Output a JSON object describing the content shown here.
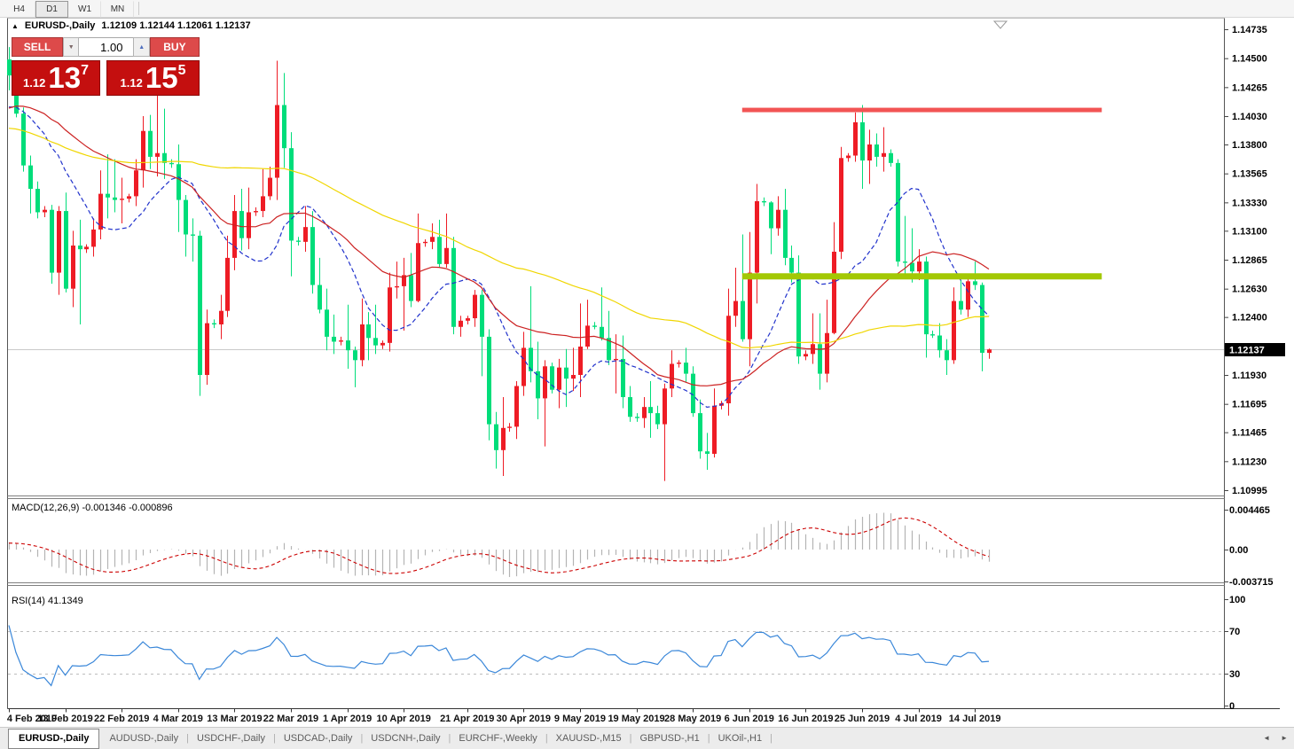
{
  "toolbar": {
    "timeframes": [
      {
        "label": "H4",
        "active": false
      },
      {
        "label": "D1",
        "active": true
      },
      {
        "label": "W1",
        "active": false
      },
      {
        "label": "MN",
        "active": false
      }
    ]
  },
  "chart": {
    "symbol_title": "EURUSD-,Daily",
    "ohlc_text": "1.12109 1.12144 1.12061 1.12137",
    "collapse_icon": "▲",
    "trade_panel": {
      "sell_label": "SELL",
      "buy_label": "BUY",
      "volume": "1.00",
      "spin_down_icon": "▼",
      "spin_up_icon": "▲",
      "sell_price_small": "1.12",
      "sell_price_big": "13",
      "sell_price_sup": "7",
      "buy_price_small": "1.12",
      "buy_price_big": "15",
      "buy_price_sup": "5",
      "panel_red": "#c40f0f",
      "button_red": "#dd4a4a"
    },
    "current_price_label": "1.12137",
    "price_axis_labels": [
      "1.14735",
      "1.14500",
      "1.14265",
      "1.14030",
      "1.13800",
      "1.13565",
      "1.13330",
      "1.13100",
      "1.12865",
      "1.12630",
      "1.12400",
      "1.12165",
      "1.11930",
      "1.11695",
      "1.11465",
      "1.11230",
      "1.10995"
    ],
    "macd_label": "MACD(12,26,9) -0.001346 -0.000896",
    "macd_axis_labels": [
      "0.004465",
      "0.00",
      "-0.003715"
    ],
    "rsi_label": "RSI(14) 41.1349",
    "rsi_axis_labels": [
      "100",
      "70",
      "30",
      "0"
    ]
  },
  "tabs": {
    "items": [
      {
        "label": "EURUSD-,Daily",
        "active": true
      },
      {
        "label": "AUDUSD-,Daily",
        "active": false
      },
      {
        "label": "USDCHF-,Daily",
        "active": false
      },
      {
        "label": "USDCAD-,Daily",
        "active": false
      },
      {
        "label": "USDCNH-,Daily",
        "active": false
      },
      {
        "label": "EURCHF-,Weekly",
        "active": false
      },
      {
        "label": "XAUUSD-,M15",
        "active": false
      },
      {
        "label": "GBPUSD-,H1",
        "active": false
      },
      {
        "label": "UKOil-,H1",
        "active": false
      }
    ],
    "scroll_left_icon": "◄",
    "scroll_right_icon": "►"
  },
  "chart_data": {
    "type": "candlestick",
    "symbol": "EURUSD",
    "timeframe": "Daily",
    "ylim": [
      1.10995,
      1.14735
    ],
    "open": [
      1.1449,
      1.1436,
      1.1405,
      1.1363,
      1.1344,
      1.1325,
      1.1327,
      1.1276,
      1.1326,
      1.1263,
      1.1298,
      1.1295,
      1.1297,
      1.1311,
      1.134,
      1.1337,
      1.1335,
      1.1336,
      1.1338,
      1.1359,
      1.1391,
      1.137,
      1.1373,
      1.1365,
      1.1364,
      1.1335,
      1.1307,
      1.1306,
      1.1193,
      1.1235,
      1.1234,
      1.1245,
      1.1288,
      1.1326,
      1.1304,
      1.1325,
      1.1326,
      1.1338,
      1.1353,
      1.1412,
      1.1377,
      1.1302,
      1.1301,
      1.1313,
      1.1266,
      1.1246,
      1.1224,
      1.122,
      1.1221,
      1.1213,
      1.1205,
      1.1234,
      1.1223,
      1.1217,
      1.1219,
      1.1264,
      1.1265,
      1.1274,
      1.1253,
      1.13,
      1.1301,
      1.1305,
      1.1283,
      1.1296,
      1.1232,
      1.1237,
      1.1239,
      1.1258,
      1.1224,
      1.1153,
      1.1132,
      1.115,
      1.1151,
      1.1184,
      1.1215,
      1.1196,
      1.1174,
      1.12,
      1.1181,
      1.1199,
      1.119,
      1.1193,
      1.1216,
      1.1233,
      1.1232,
      1.1223,
      1.1205,
      1.1206,
      1.1175,
      1.1159,
      1.1158,
      1.1167,
      1.1162,
      1.1153,
      1.1182,
      1.1202,
      1.1203,
      1.1194,
      1.1162,
      1.1131,
      1.1129,
      1.1168,
      1.117,
      1.1241,
      1.1253,
      1.1222,
      1.1276,
      1.1334,
      1.1333,
      1.1312,
      1.1327,
      1.1288,
      1.1276,
      1.1208,
      1.121,
      1.1218,
      1.1194,
      1.1227,
      1.1293,
      1.1369,
      1.1371,
      1.1398,
      1.1367,
      1.138,
      1.137,
      1.1373,
      1.1365,
      1.1285,
      1.1284,
      1.1277,
      1.1285,
      1.1226,
      1.1225,
      1.1213,
      1.1205,
      1.1253,
      1.1246,
      1.1269,
      1.1266,
      1.12109
    ],
    "high": [
      1.1459,
      1.144,
      1.141,
      1.1371,
      1.135,
      1.133,
      1.1331,
      1.133,
      1.1341,
      1.131,
      1.1319,
      1.1299,
      1.132,
      1.1359,
      1.1372,
      1.1368,
      1.1353,
      1.134,
      1.1368,
      1.1403,
      1.1404,
      1.142,
      1.1409,
      1.1368,
      1.138,
      1.1339,
      1.132,
      1.131,
      1.1246,
      1.1238,
      1.1258,
      1.1306,
      1.1339,
      1.1344,
      1.1345,
      1.1329,
      1.136,
      1.1362,
      1.1448,
      1.1438,
      1.139,
      1.1305,
      1.133,
      1.1326,
      1.1288,
      1.1263,
      1.1242,
      1.1224,
      1.125,
      1.1216,
      1.1255,
      1.1244,
      1.125,
      1.1221,
      1.1276,
      1.1285,
      1.1288,
      1.1292,
      1.1324,
      1.1303,
      1.1316,
      1.1319,
      1.1324,
      1.1305,
      1.1241,
      1.1241,
      1.1262,
      1.1262,
      1.123,
      1.1163,
      1.1175,
      1.1154,
      1.1188,
      1.1228,
      1.1265,
      1.122,
      1.1205,
      1.1203,
      1.1206,
      1.1214,
      1.1215,
      1.1251,
      1.1254,
      1.1236,
      1.1264,
      1.1245,
      1.1226,
      1.1225,
      1.1184,
      1.1162,
      1.1175,
      1.1188,
      1.1168,
      1.1186,
      1.1213,
      1.1205,
      1.1215,
      1.12,
      1.1173,
      1.1146,
      1.1182,
      1.1172,
      1.1263,
      1.128,
      1.1307,
      1.1309,
      1.1348,
      1.1337,
      1.1334,
      1.1338,
      1.1344,
      1.1298,
      1.129,
      1.1213,
      1.1243,
      1.1243,
      1.1254,
      1.1317,
      1.1378,
      1.1373,
      1.1406,
      1.1412,
      1.1392,
      1.1389,
      1.1394,
      1.1376,
      1.1368,
      1.1322,
      1.1312,
      1.1295,
      1.1289,
      1.1229,
      1.1235,
      1.1222,
      1.1264,
      1.127,
      1.1275,
      1.1285,
      1.1268,
      1.12144
    ],
    "low": [
      1.1424,
      1.1402,
      1.1358,
      1.1324,
      1.132,
      1.1321,
      1.1267,
      1.1258,
      1.126,
      1.1248,
      1.1234,
      1.1292,
      1.1289,
      1.1303,
      1.132,
      1.1325,
      1.1316,
      1.1333,
      1.133,
      1.1345,
      1.136,
      1.1354,
      1.1352,
      1.1361,
      1.1309,
      1.1289,
      1.1285,
      1.1176,
      1.1185,
      1.1231,
      1.1222,
      1.124,
      1.1278,
      1.1294,
      1.1295,
      1.1322,
      1.1321,
      1.1335,
      1.1335,
      1.1361,
      1.1273,
      1.1298,
      1.1293,
      1.1259,
      1.1243,
      1.1213,
      1.121,
      1.1217,
      1.1198,
      1.1183,
      1.12,
      1.1205,
      1.121,
      1.1214,
      1.1212,
      1.1255,
      1.1229,
      1.1248,
      1.1252,
      1.1297,
      1.1295,
      1.128,
      1.128,
      1.1226,
      1.1224,
      1.1234,
      1.1232,
      1.1192,
      1.114,
      1.1117,
      1.1111,
      1.1147,
      1.1141,
      1.1176,
      1.1187,
      1.1157,
      1.1135,
      1.1178,
      1.1166,
      1.1167,
      1.118,
      1.1175,
      1.1214,
      1.123,
      1.1221,
      1.1201,
      1.1178,
      1.1166,
      1.1155,
      1.1155,
      1.115,
      1.1142,
      1.1149,
      1.1107,
      1.1175,
      1.1199,
      1.1187,
      1.1159,
      1.1125,
      1.1116,
      1.1126,
      1.1165,
      1.116,
      1.1232,
      1.122,
      1.12,
      1.1251,
      1.133,
      1.1291,
      1.1306,
      1.1282,
      1.1268,
      1.1202,
      1.1205,
      1.1202,
      1.1181,
      1.1187,
      1.1226,
      1.1287,
      1.1366,
      1.1366,
      1.1344,
      1.1348,
      1.1362,
      1.1358,
      1.1362,
      1.1281,
      1.1275,
      1.1268,
      1.127,
      1.1207,
      1.1223,
      1.1207,
      1.1193,
      1.1202,
      1.1242,
      1.124,
      1.1262,
      1.1196,
      1.12061
    ],
    "close": [
      1.1436,
      1.1405,
      1.1363,
      1.1344,
      1.1325,
      1.1327,
      1.1276,
      1.1326,
      1.1263,
      1.1298,
      1.1295,
      1.1297,
      1.1311,
      1.134,
      1.1337,
      1.1335,
      1.1336,
      1.1338,
      1.1359,
      1.1391,
      1.137,
      1.1373,
      1.1365,
      1.1364,
      1.1335,
      1.1307,
      1.1306,
      1.1193,
      1.1235,
      1.1234,
      1.1245,
      1.1288,
      1.1326,
      1.1304,
      1.1325,
      1.1326,
      1.1338,
      1.1353,
      1.1412,
      1.1377,
      1.1302,
      1.1301,
      1.1313,
      1.1266,
      1.1246,
      1.1224,
      1.122,
      1.1221,
      1.1213,
      1.1205,
      1.1234,
      1.1223,
      1.1217,
      1.1219,
      1.1264,
      1.1265,
      1.1274,
      1.1253,
      1.13,
      1.1301,
      1.1305,
      1.1283,
      1.1296,
      1.1232,
      1.1237,
      1.1239,
      1.1258,
      1.1224,
      1.1153,
      1.1132,
      1.115,
      1.1151,
      1.1184,
      1.1215,
      1.1196,
      1.1174,
      1.12,
      1.1181,
      1.1199,
      1.119,
      1.1193,
      1.1216,
      1.1233,
      1.1232,
      1.1223,
      1.1205,
      1.1206,
      1.1175,
      1.1159,
      1.1158,
      1.1167,
      1.1162,
      1.1153,
      1.1182,
      1.1202,
      1.1203,
      1.1194,
      1.1162,
      1.1131,
      1.1129,
      1.1168,
      1.117,
      1.1241,
      1.1253,
      1.1222,
      1.1276,
      1.1334,
      1.1333,
      1.1312,
      1.1327,
      1.1288,
      1.1276,
      1.1208,
      1.121,
      1.1218,
      1.1194,
      1.1227,
      1.1293,
      1.1369,
      1.1371,
      1.1398,
      1.1367,
      1.138,
      1.137,
      1.1373,
      1.1365,
      1.1285,
      1.1284,
      1.1277,
      1.1285,
      1.1226,
      1.1225,
      1.1213,
      1.1205,
      1.1253,
      1.1246,
      1.1269,
      1.1266,
      1.1211,
      1.12137
    ],
    "x_ticks": [
      {
        "i": 0,
        "label": "4 Feb 2019"
      },
      {
        "i": 8,
        "label": "13 Feb 2019"
      },
      {
        "i": 16,
        "label": "22 Feb 2019"
      },
      {
        "i": 24,
        "label": "4 Mar 2019"
      },
      {
        "i": 32,
        "label": "13 Mar 2019"
      },
      {
        "i": 40,
        "label": "22 Mar 2019"
      },
      {
        "i": 48,
        "label": "1 Apr 2019"
      },
      {
        "i": 56,
        "label": "10 Apr 2019"
      },
      {
        "i": 65,
        "label": "21 Apr 2019"
      },
      {
        "i": 73,
        "label": "30 Apr 2019"
      },
      {
        "i": 81,
        "label": "9 May 2019"
      },
      {
        "i": 89,
        "label": "19 May 2019"
      },
      {
        "i": 97,
        "label": "28 May 2019"
      },
      {
        "i": 105,
        "label": "6 Jun 2019"
      },
      {
        "i": 113,
        "label": "16 Jun 2019"
      },
      {
        "i": 121,
        "label": "25 Jun 2019"
      },
      {
        "i": 129,
        "label": "4 Jul 2019"
      },
      {
        "i": 137,
        "label": "14 Jul 2019"
      }
    ],
    "moving_averages": [
      {
        "name": "fast",
        "period": 12,
        "color": "#2233cc",
        "style": "dashed"
      },
      {
        "name": "medium",
        "period": 30,
        "color": "#cc2222",
        "style": "solid"
      },
      {
        "name": "slow",
        "period": 65,
        "color": "#f0d600",
        "style": "solid"
      }
    ],
    "warmup_closes": [
      1.138,
      1.1392,
      1.1405,
      1.1418,
      1.143,
      1.1438,
      1.1445,
      1.1452,
      1.1458,
      1.1465,
      1.1472,
      1.1465,
      1.1455,
      1.1445,
      1.1438,
      1.143,
      1.1422,
      1.1415,
      1.1408,
      1.14,
      1.1392,
      1.1385,
      1.138,
      1.1375,
      1.137,
      1.1365,
      1.1358,
      1.135,
      1.1342,
      1.1335,
      1.1328,
      1.132,
      1.1312,
      1.1305,
      1.1298,
      1.1292,
      1.1298,
      1.1308,
      1.1318,
      1.133,
      1.1342,
      1.1355,
      1.1368,
      1.138,
      1.1392,
      1.1402,
      1.1412,
      1.142,
      1.1428,
      1.1435,
      1.1432,
      1.1428,
      1.1424,
      1.142,
      1.1418,
      1.1415,
      1.1412,
      1.141,
      1.1408,
      1.1406,
      1.1405,
      1.1404,
      1.1404,
      1.1405,
      1.1406,
      1.1408,
      1.141,
      1.1412,
      1.1414,
      1.1415
    ],
    "objects": {
      "resistance_line": {
        "price": 1.1408,
        "color": "#f25454",
        "thickness": 5,
        "start_index": 104,
        "end_index": 155
      },
      "support_line": {
        "price": 1.1273,
        "color": "#a3c804",
        "thickness": 7,
        "start_index": 104,
        "end_index": 155
      }
    },
    "current_price": 1.12137,
    "indicators": {
      "macd": {
        "fast": 12,
        "slow": 26,
        "signal": 9,
        "main_value": -0.001346,
        "signal_value": -0.000896,
        "range": [
          -0.003715,
          0.004465
        ],
        "histogram_color": "#b4b4b4",
        "signal_color": "#cc0000"
      },
      "rsi": {
        "period": 14,
        "value": 41.1349,
        "levels": [
          70,
          30
        ],
        "range": [
          0,
          100
        ],
        "color": "#3a87d9"
      }
    },
    "colors": {
      "up": "#ee1c25",
      "down": "#00dd7a",
      "current_price_line": "#c9c9c9",
      "price_tag_bg": "#000000",
      "price_tag_text": "#ffffff"
    }
  }
}
